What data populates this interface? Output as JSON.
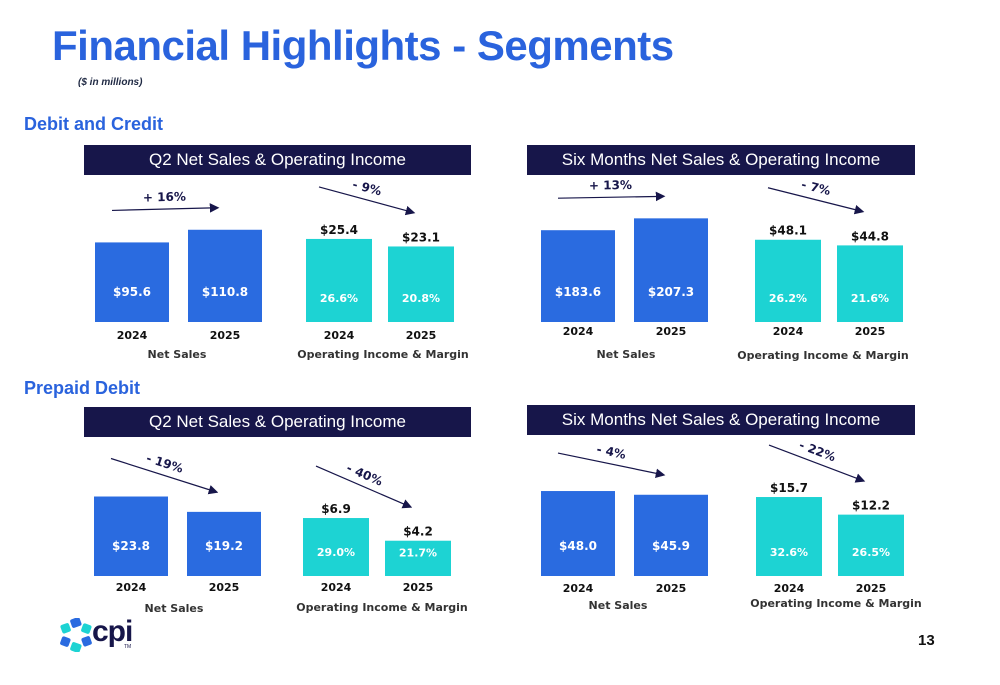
{
  "page": {
    "title": "Financial Highlights - Segments",
    "subtitle": "($ in millions)",
    "page_number": "13",
    "logo_text": "cpi",
    "logo_tm": "TM"
  },
  "sections": [
    {
      "label": "Debit and Credit"
    },
    {
      "label": "Prepaid Debit"
    }
  ],
  "colors": {
    "net_sales": "#2a6be0",
    "operating_income": "#1dd3d3",
    "header_bg": "#17164a",
    "accent": "#2a63dd"
  },
  "chart_data": [
    {
      "type": "bar",
      "section": "Debit and Credit",
      "title": "Q2 Net Sales & Operating Income",
      "net_sales": {
        "categories": [
          "2024",
          "2025"
        ],
        "values": [
          95.6,
          110.8
        ],
        "labels": [
          "$95.6",
          "$110.8"
        ],
        "change": "+ 16%",
        "xlabel": "Net Sales"
      },
      "operating_income": {
        "categories": [
          "2024",
          "2025"
        ],
        "values": [
          25.4,
          23.1
        ],
        "labels": [
          "$25.4",
          "$23.1"
        ],
        "margins": [
          "26.6%",
          "20.8%"
        ],
        "change": "- 9%",
        "xlabel": "Operating Income & Margin"
      }
    },
    {
      "type": "bar",
      "section": "Debit and Credit",
      "title": "Six Months Net Sales & Operating Income",
      "net_sales": {
        "categories": [
          "2024",
          "2025"
        ],
        "values": [
          183.6,
          207.3
        ],
        "labels": [
          "$183.6",
          "$207.3"
        ],
        "change": "+ 13%",
        "xlabel": "Net Sales"
      },
      "operating_income": {
        "categories": [
          "2024",
          "2025"
        ],
        "values": [
          48.1,
          44.8
        ],
        "labels": [
          "$48.1",
          "$44.8"
        ],
        "margins": [
          "26.2%",
          "21.6%"
        ],
        "change": "- 7%",
        "xlabel": "Operating Income & Margin"
      }
    },
    {
      "type": "bar",
      "section": "Prepaid Debit",
      "title": "Q2 Net Sales & Operating Income",
      "net_sales": {
        "categories": [
          "2024",
          "2025"
        ],
        "values": [
          23.8,
          19.2
        ],
        "labels": [
          "$23.8",
          "$19.2"
        ],
        "change": "- 19%",
        "xlabel": "Net Sales"
      },
      "operating_income": {
        "categories": [
          "2024",
          "2025"
        ],
        "values": [
          6.9,
          4.2
        ],
        "labels": [
          "$6.9",
          "$4.2"
        ],
        "margins": [
          "29.0%",
          "21.7%"
        ],
        "change": "- 40%",
        "xlabel": "Operating Income & Margin"
      }
    },
    {
      "type": "bar",
      "section": "Prepaid Debit",
      "title": "Six Months Net Sales & Operating Income",
      "net_sales": {
        "categories": [
          "2024",
          "2025"
        ],
        "values": [
          48.0,
          45.9
        ],
        "labels": [
          "$48.0",
          "$45.9"
        ],
        "change": "- 4%",
        "xlabel": "Net Sales"
      },
      "operating_income": {
        "categories": [
          "2024",
          "2025"
        ],
        "values": [
          15.7,
          12.2
        ],
        "labels": [
          "$15.7",
          "$12.2"
        ],
        "margins": [
          "32.6%",
          "26.5%"
        ],
        "change": "- 22%",
        "xlabel": "Operating Income & Margin"
      }
    }
  ]
}
